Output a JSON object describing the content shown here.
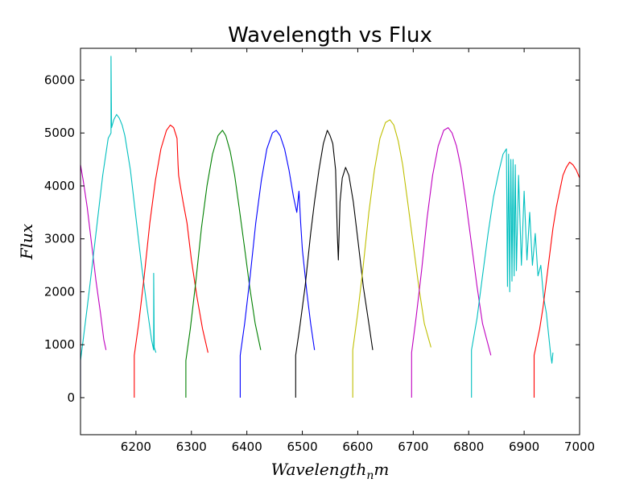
{
  "chart_data": {
    "type": "line",
    "title": "Wavelength vs Flux",
    "xlabel": "Wavelength_nm",
    "xlabel_base": "Wavelength",
    "xlabel_sub": "n",
    "xlabel_tail": "m",
    "ylabel": "Flux",
    "xlim": [
      6100,
      7000
    ],
    "ylim": [
      -700,
      6600
    ],
    "xticks": [
      6200,
      6300,
      6400,
      6500,
      6600,
      6700,
      6800,
      6900,
      7000
    ],
    "yticks": [
      0,
      1000,
      2000,
      3000,
      4000,
      5000,
      6000
    ],
    "grid": false,
    "legend": "none",
    "series": [
      {
        "color": "#bf00bf",
        "x": [
          6100,
          6100,
          6105,
          6112,
          6120,
          6128,
          6136,
          6142,
          6146
        ],
        "y": [
          0,
          4400,
          4100,
          3600,
          2900,
          2200,
          1600,
          1100,
          900
        ]
      },
      {
        "color": "#00bfbf",
        "x": [
          6100,
          6100,
          6105,
          6112,
          6120,
          6130,
          6140,
          6150,
          6155,
          6155,
          6156,
          6160,
          6165,
          6170,
          6175,
          6180,
          6190,
          6200,
          6210,
          6220,
          6228,
          6232,
          6232,
          6233,
          6236
        ],
        "y": [
          0,
          700,
          1100,
          1700,
          2400,
          3300,
          4200,
          4900,
          5000,
          6450,
          5100,
          5250,
          5350,
          5280,
          5150,
          4950,
          4300,
          3400,
          2500,
          1700,
          1100,
          900,
          2350,
          950,
          850
        ]
      },
      {
        "color": "#ff0000",
        "x": [
          6197,
          6197,
          6205,
          6215,
          6225,
          6235,
          6245,
          6255,
          6262,
          6268,
          6274,
          6276,
          6277,
          6280,
          6285,
          6292,
          6300,
          6310,
          6320,
          6330
        ],
        "y": [
          0,
          800,
          1400,
          2300,
          3300,
          4100,
          4700,
          5050,
          5150,
          5100,
          4900,
          4400,
          4200,
          4000,
          3700,
          3300,
          2600,
          1900,
          1300,
          850
        ]
      },
      {
        "color": "#008000",
        "x": [
          6290,
          6290,
          6298,
          6308,
          6318,
          6328,
          6338,
          6348,
          6356,
          6362,
          6370,
          6378,
          6386,
          6395,
          6405,
          6415,
          6425
        ],
        "y": [
          0,
          700,
          1300,
          2200,
          3200,
          4000,
          4600,
          4950,
          5050,
          4950,
          4650,
          4200,
          3600,
          2900,
          2100,
          1400,
          900
        ]
      },
      {
        "color": "#0000ff",
        "x": [
          6388,
          6388,
          6396,
          6406,
          6416,
          6426,
          6436,
          6446,
          6453,
          6460,
          6468,
          6476,
          6484,
          6490,
          6494,
          6497,
          6500,
          6508,
          6515,
          6522
        ],
        "y": [
          0,
          800,
          1400,
          2300,
          3300,
          4100,
          4700,
          5000,
          5050,
          4950,
          4700,
          4300,
          3800,
          3500,
          3900,
          3300,
          2800,
          2000,
          1400,
          900
        ]
      },
      {
        "color": "#000000",
        "x": [
          6488,
          6488,
          6495,
          6505,
          6515,
          6522,
          6530,
          6538,
          6545,
          6550,
          6555,
          6560,
          6563,
          6565,
          6568,
          6572,
          6578,
          6584,
          6592,
          6600,
          6610,
          6620,
          6627
        ],
        "y": [
          0,
          800,
          1300,
          2100,
          3100,
          3700,
          4300,
          4800,
          5050,
          4950,
          4800,
          4300,
          3100,
          2600,
          3700,
          4150,
          4350,
          4200,
          3700,
          3000,
          2100,
          1400,
          900
        ]
      },
      {
        "color": "#bfbf00",
        "x": [
          6591,
          6591,
          6600,
          6610,
          6620,
          6630,
          6640,
          6650,
          6658,
          6665,
          6673,
          6681,
          6690,
          6700,
          6710,
          6720,
          6732
        ],
        "y": [
          0,
          900,
          1600,
          2500,
          3500,
          4300,
          4900,
          5200,
          5250,
          5150,
          4850,
          4400,
          3700,
          2900,
          2100,
          1400,
          950
        ]
      },
      {
        "color": "#bf00bf",
        "x": [
          6697,
          6697,
          6705,
          6715,
          6725,
          6735,
          6745,
          6755,
          6763,
          6770,
          6778,
          6786,
          6795,
          6805,
          6815,
          6825,
          6840
        ],
        "y": [
          0,
          850,
          1500,
          2400,
          3400,
          4200,
          4750,
          5050,
          5100,
          5000,
          4750,
          4350,
          3700,
          2900,
          2100,
          1400,
          800
        ]
      },
      {
        "color": "#00bfbf",
        "x": [
          6805,
          6805,
          6815,
          6825,
          6835,
          6845,
          6855,
          6862,
          6868,
          6870,
          6872,
          6874,
          6876,
          6878,
          6880,
          6882,
          6884,
          6886,
          6890,
          6895,
          6900,
          6905,
          6910,
          6915,
          6920,
          6925,
          6930,
          6935,
          6940,
          6945,
          6948,
          6950,
          6952
        ],
        "y": [
          0,
          900,
          1500,
          2300,
          3100,
          3800,
          4300,
          4600,
          4700,
          2100,
          4600,
          2000,
          4500,
          2200,
          4500,
          2300,
          4400,
          2400,
          4200,
          2500,
          3900,
          2600,
          3500,
          2500,
          3100,
          2300,
          2500,
          1900,
          1600,
          1100,
          800,
          650,
          850
        ]
      },
      {
        "color": "#ff0000",
        "x": [
          6918,
          6918,
          6922,
          6928,
          6934,
          6940,
          6946,
          6952,
          6958,
          6964,
          6970,
          6976,
          6982,
          6988,
          6994,
          7000
        ],
        "y": [
          0,
          800,
          1000,
          1300,
          1700,
          2200,
          2700,
          3200,
          3600,
          3900,
          4200,
          4350,
          4450,
          4400,
          4300,
          4150
        ]
      }
    ]
  }
}
